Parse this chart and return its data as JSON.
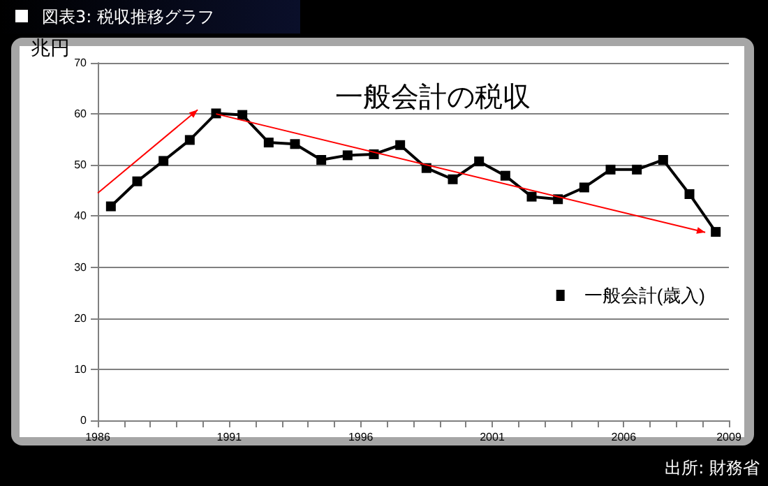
{
  "chart_data": {
    "type": "line",
    "title": "一般会計の税収",
    "ylabel": "兆円",
    "annotations": [
      "図表3: 税収推移グラフ",
      "出所: 財務省"
    ],
    "x": [
      1986,
      1987,
      1988,
      1989,
      1990,
      1991,
      1992,
      1993,
      1994,
      1995,
      1996,
      1997,
      1998,
      1999,
      2000,
      2001,
      2002,
      2003,
      2004,
      2005,
      2006,
      2007,
      2008,
      2009
    ],
    "series": [
      {
        "name": "一般会計(歳入)",
        "color": "#000000",
        "values": [
          41.9,
          46.8,
          50.8,
          54.9,
          60.1,
          59.8,
          54.4,
          54.1,
          51.0,
          51.9,
          52.1,
          53.9,
          49.4,
          47.2,
          50.7,
          47.9,
          43.8,
          43.3,
          45.6,
          49.1,
          49.1,
          51.0,
          44.3,
          36.9
        ]
      }
    ],
    "xlim": [
      1985.5,
      2009.5
    ],
    "xticks": [
      {
        "value": 1985.5,
        "label": "1986"
      },
      {
        "value": 1986.5,
        "label": null
      },
      {
        "value": 1987.5,
        "label": null
      },
      {
        "value": 1988.5,
        "label": null
      },
      {
        "value": 1989.5,
        "label": null
      },
      {
        "value": 1990.5,
        "label": "1991"
      },
      {
        "value": 1991.5,
        "label": null
      },
      {
        "value": 1992.5,
        "label": null
      },
      {
        "value": 1993.5,
        "label": null
      },
      {
        "value": 1994.5,
        "label": null
      },
      {
        "value": 1995.5,
        "label": "1996"
      },
      {
        "value": 1996.5,
        "label": null
      },
      {
        "value": 1997.5,
        "label": null
      },
      {
        "value": 1998.5,
        "label": null
      },
      {
        "value": 1999.5,
        "label": null
      },
      {
        "value": 2000.5,
        "label": "2001"
      },
      {
        "value": 2001.5,
        "label": null
      },
      {
        "value": 2002.5,
        "label": null
      },
      {
        "value": 2003.5,
        "label": null
      },
      {
        "value": 2004.5,
        "label": null
      },
      {
        "value": 2005.5,
        "label": "2006"
      },
      {
        "value": 2006.5,
        "label": null
      },
      {
        "value": 2007.5,
        "label": null
      },
      {
        "value": 2008.5,
        "label": null
      },
      {
        "value": 2009.5,
        "label": "2009"
      }
    ],
    "ylim": [
      0,
      70
    ],
    "yticks": [
      0,
      10,
      20,
      30,
      40,
      50,
      60,
      70
    ],
    "grid": "y",
    "legend": "right",
    "marker": "square",
    "line_style": "solid"
  }
}
